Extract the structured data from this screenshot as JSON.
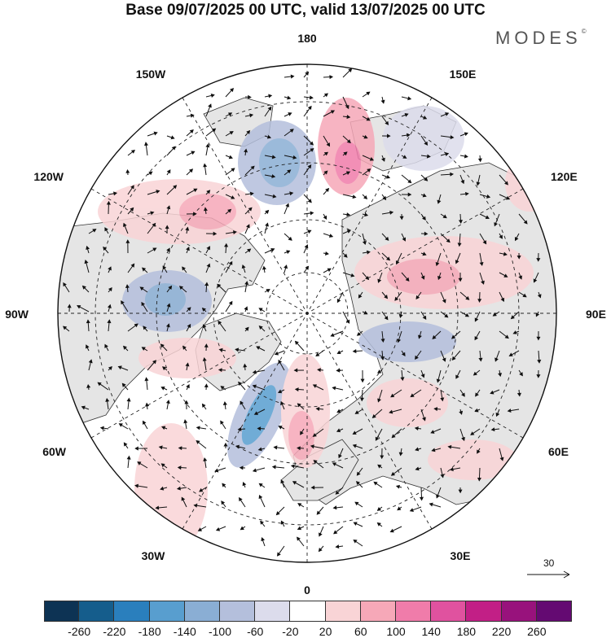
{
  "title": "Base 09/07/2025 00 UTC, valid 13/07/2025 00 UTC",
  "brand": "MODES",
  "brand_mark": "©",
  "longitude_labels": [
    "180",
    "150E",
    "120E",
    "90E",
    "60E",
    "30E",
    "0",
    "30W",
    "60W",
    "90W",
    "120W",
    "150W"
  ],
  "reference_vector": "30",
  "colorbar": {
    "ticks": [
      "-260",
      "-220",
      "-180",
      "-140",
      "-100",
      "-60",
      "-20",
      "20",
      "60",
      "100",
      "140",
      "180",
      "220",
      "260"
    ],
    "colors": [
      "#0d3354",
      "#155d8c",
      "#2a7fbd",
      "#589ecf",
      "#8aaed4",
      "#b4bfdc",
      "#dcdcec",
      "#ffffff",
      "#f9d4d6",
      "#f6a8b8",
      "#f07caa",
      "#e0529f",
      "#c21f86",
      "#98127c",
      "#640a72"
    ]
  },
  "anomaly_colors": {
    "land": "#e5e5e5",
    "neg_weak": "#dcdcec",
    "neg_mid": "#b4bfdc",
    "neg_strong": "#8aaed4",
    "neg_stronger": "#589ecf",
    "pos_weak": "#f9d4d6",
    "pos_mid": "#f6a8b8",
    "pos_strong": "#f07caa"
  }
}
